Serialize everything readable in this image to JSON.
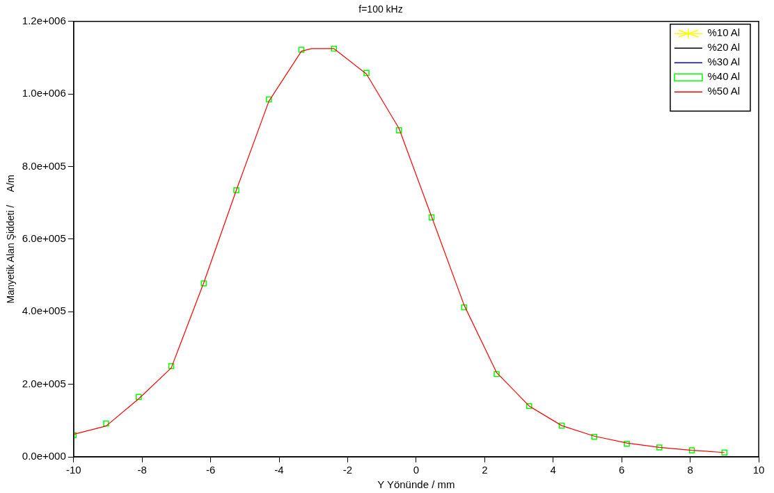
{
  "chart_data": {
    "type": "line",
    "title": "f=100 kHz",
    "xlabel": "Y Yönünde / mm",
    "ylabel": "Manyetik Alan Şiddeti /     A/m",
    "x": [
      -10,
      -9.05,
      -8.1,
      -7.15,
      -6.2,
      -5.25,
      -4.3,
      -3.35,
      -2.4,
      -1.45,
      -0.5,
      0.45,
      1.4,
      2.35,
      3.3,
      4.25,
      5.2,
      6.15,
      7.1,
      8.05,
      9
    ],
    "series": [
      {
        "name": "%10 Al",
        "color": "#ffff00",
        "type": "scatter",
        "marker": "star",
        "values": [
          null,
          null,
          null,
          null,
          null,
          null,
          null,
          null,
          null,
          null,
          null,
          null,
          null,
          null,
          null,
          null,
          null,
          null,
          null,
          null,
          null
        ]
      },
      {
        "name": "%20 Al",
        "color": "#000000",
        "values": [
          null,
          null,
          null,
          null,
          null,
          null,
          null,
          null,
          null,
          null,
          null,
          null,
          null,
          null,
          null,
          null,
          null,
          null,
          null,
          null,
          null
        ]
      },
      {
        "name": "%30 Al",
        "color": "#0000ff",
        "values": [
          null,
          null,
          null,
          null,
          null,
          null,
          null,
          null,
          null,
          null,
          null,
          null,
          null,
          null,
          null,
          null,
          null,
          null,
          null,
          null,
          null
        ]
      },
      {
        "name": "%40 Al",
        "color": "#00ff00",
        "type": "scatter",
        "marker": "square",
        "values": [
          60000,
          92000,
          165000,
          250000,
          478000,
          735000,
          985000,
          1122000,
          1125000,
          1058000,
          900000,
          660000,
          412000,
          228000,
          140000,
          86000,
          55000,
          36000,
          26000,
          18000,
          12000
        ]
      },
      {
        "name": "%50 Al",
        "color": "#ff0000",
        "x": [
          -10,
          -9.05,
          -8.1,
          -7.15,
          -6.2,
          -5.25,
          -4.3,
          -3.35,
          -3.05,
          -2.4,
          -1.45,
          -0.5,
          0.45,
          1.4,
          2.35,
          3.3,
          4.25,
          5.2,
          6.15,
          7.1,
          8.05,
          9
        ],
        "values": [
          62000,
          85000,
          160000,
          245000,
          480000,
          735000,
          980000,
          1118000,
          1125000,
          1125000,
          1055000,
          905000,
          662000,
          418000,
          232000,
          140000,
          86000,
          57000,
          38000,
          26000,
          18000,
          12000
        ]
      }
    ],
    "xlim": [
      -10,
      10
    ],
    "xticks": [
      -10,
      -8,
      -6,
      -4,
      -2,
      0,
      2,
      4,
      6,
      8,
      10
    ],
    "ylim": [
      0,
      1200000
    ],
    "yticks": [
      {
        "value": 0,
        "label": "0.0e+000"
      },
      {
        "value": 200000,
        "label": "2.0e+005"
      },
      {
        "value": 400000,
        "label": "4.0e+005"
      },
      {
        "value": 600000,
        "label": "6.0e+005"
      },
      {
        "value": 800000,
        "label": "8.0e+005"
      },
      {
        "value": 1000000,
        "label": "1.0e+006"
      },
      {
        "value": 1200000,
        "label": "1.2e+006"
      }
    ],
    "grid": false,
    "legend": "top right",
    "marker": "none",
    "line_style": "solid"
  }
}
